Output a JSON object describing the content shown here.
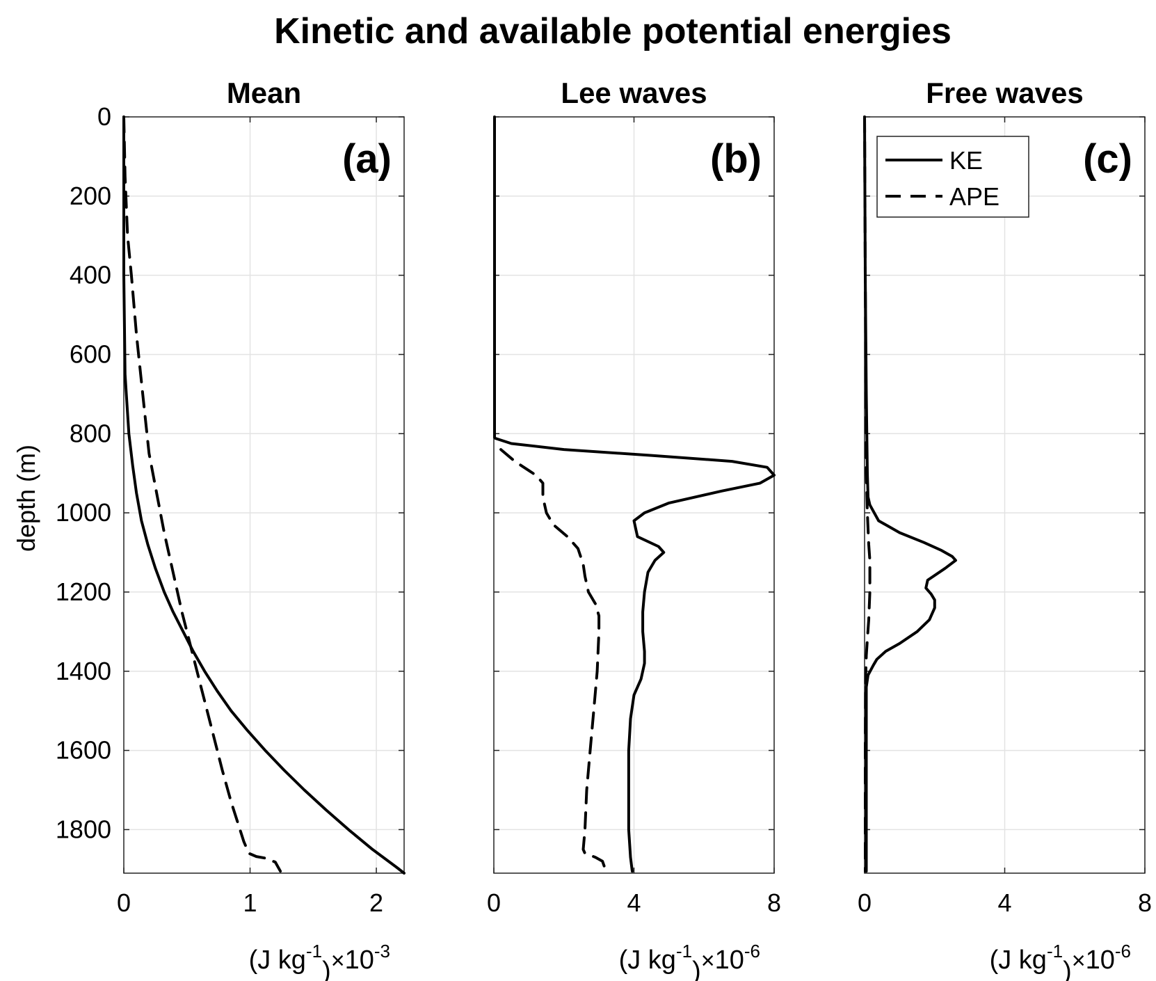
{
  "chart_data": {
    "title": "Kinetic and available potential energies",
    "ylabel": "depth (m)",
    "ylim": [
      1910,
      0
    ],
    "yticks": [
      0,
      200,
      400,
      600,
      800,
      1000,
      1200,
      1400,
      1600,
      1800
    ],
    "legend": {
      "location": "top-left of panel (c)",
      "entries": [
        {
          "label": "KE",
          "style": "solid"
        },
        {
          "label": "APE",
          "style": "dashed"
        }
      ]
    },
    "panels": [
      {
        "id": "a",
        "tag": "(a)",
        "title": "Mean",
        "type": "line",
        "xlim": [
          0,
          2.22
        ],
        "xticks": [
          0,
          1,
          2
        ],
        "xlabel_units": "(J kg",
        "xlabel_exp": "-1",
        "xlabel_close": ")",
        "xlabel_times": "×",
        "xlabel_scale": "10",
        "xlabel_scale_exp": "-3",
        "series": [
          {
            "name": "KE",
            "style": "solid",
            "x": [
              0,
              0,
              0.01,
              0.02,
              0.04,
              0.07,
              0.1,
              0.14,
              0.19,
              0.25,
              0.32,
              0.39,
              0.47,
              0.55,
              0.64,
              0.74,
              0.85,
              0.98,
              1.12,
              1.27,
              1.43,
              1.6,
              1.78,
              1.97,
              2.16,
              2.22
            ],
            "y": [
              0,
              400,
              650,
              700,
              800,
              880,
              950,
              1020,
              1080,
              1140,
              1200,
              1250,
              1300,
              1350,
              1400,
              1450,
              1500,
              1550,
              1600,
              1650,
              1700,
              1750,
              1800,
              1850,
              1895,
              1910
            ]
          },
          {
            "name": "APE",
            "style": "dashed",
            "x": [
              0,
              0.01,
              0.03,
              0.06,
              0.1,
              0.15,
              0.2,
              0.26,
              0.32,
              0.39,
              0.46,
              0.54,
              0.62,
              0.7,
              0.78,
              0.85,
              0.9,
              0.95,
              0.99,
              1.05,
              1.12,
              1.2,
              1.24
            ],
            "y": [
              0,
              150,
              300,
              400,
              550,
              700,
              850,
              950,
              1050,
              1150,
              1250,
              1350,
              1450,
              1550,
              1650,
              1730,
              1780,
              1830,
              1860,
              1868,
              1872,
              1882,
              1905
            ]
          }
        ]
      },
      {
        "id": "b",
        "tag": "(b)",
        "title": "Lee waves",
        "type": "line",
        "xlim": [
          0,
          8
        ],
        "xticks": [
          0,
          4,
          8
        ],
        "xlabel_units": "(J kg",
        "xlabel_exp": "-1",
        "xlabel_close": ")",
        "xlabel_times": "×",
        "xlabel_scale": "10",
        "xlabel_scale_exp": "-6",
        "series": [
          {
            "name": "KE",
            "style": "solid",
            "x": [
              0.02,
              0.02,
              0.05,
              0.5,
              2.0,
              4.5,
              6.8,
              7.8,
              8.0,
              7.6,
              6.5,
              5.0,
              4.3,
              4.0,
              4.1,
              4.7,
              4.85,
              4.6,
              4.4,
              4.3,
              4.25,
              4.25,
              4.3,
              4.3,
              4.2,
              4.0,
              3.9,
              3.85,
              3.85,
              3.85,
              3.9,
              3.95
            ],
            "y": [
              0,
              810,
              812,
              825,
              840,
              855,
              870,
              885,
              905,
              925,
              945,
              975,
              1000,
              1020,
              1060,
              1085,
              1100,
              1120,
              1150,
              1200,
              1250,
              1300,
              1350,
              1380,
              1420,
              1460,
              1520,
              1600,
              1700,
              1800,
              1870,
              1905
            ]
          },
          {
            "name": "APE",
            "style": "dashed",
            "x": [
              0.2,
              0.6,
              1.2,
              1.4,
              1.4,
              1.5,
              1.7,
              2.1,
              2.4,
              2.55,
              2.6,
              2.7,
              2.9,
              3.0,
              3.0,
              2.95,
              2.85,
              2.75,
              2.65,
              2.6,
              2.55,
              2.6,
              2.9,
              3.1,
              3.2
            ],
            "y": [
              840,
              870,
              905,
              925,
              960,
              1000,
              1030,
              1060,
              1090,
              1130,
              1160,
              1200,
              1230,
              1260,
              1300,
              1400,
              1500,
              1600,
              1700,
              1800,
              1850,
              1860,
              1870,
              1880,
              1905
            ]
          }
        ]
      },
      {
        "id": "c",
        "tag": "(c)",
        "title": "Free waves",
        "type": "line",
        "xlim": [
          0,
          8
        ],
        "xticks": [
          0,
          4,
          8
        ],
        "xlabel_units": "(J kg",
        "xlabel_exp": "-1",
        "xlabel_close": ")",
        "xlabel_times": "×",
        "xlabel_scale": "10",
        "xlabel_scale_exp": "-6",
        "series": [
          {
            "name": "KE",
            "style": "solid",
            "x": [
              0,
              0.02,
              0.05,
              0.08,
              0.1,
              0.15,
              0.4,
              1.0,
              1.7,
              2.2,
              2.5,
              2.6,
              2.3,
              1.8,
              1.75,
              1.9,
              2.0,
              2.0,
              1.85,
              1.5,
              1.0,
              0.6,
              0.35,
              0.25,
              0.1,
              0.05,
              0.05,
              0.05,
              0.05,
              0.05
            ],
            "y": [
              0,
              400,
              700,
              900,
              960,
              980,
              1020,
              1050,
              1075,
              1095,
              1110,
              1120,
              1140,
              1170,
              1190,
              1205,
              1220,
              1240,
              1270,
              1300,
              1330,
              1350,
              1370,
              1385,
              1410,
              1440,
              1500,
              1600,
              1800,
              1905
            ]
          },
          {
            "name": "APE",
            "style": "dashed",
            "x": [
              0,
              0.02,
              0.04,
              0.05,
              0.08,
              0.12,
              0.15,
              0.15,
              0.12,
              0.08,
              0.05,
              0.03,
              0.02,
              0.02
            ],
            "y": [
              0,
              400,
              700,
              900,
              1000,
              1080,
              1120,
              1200,
              1270,
              1320,
              1360,
              1420,
              1600,
              1905
            ]
          }
        ]
      }
    ]
  }
}
